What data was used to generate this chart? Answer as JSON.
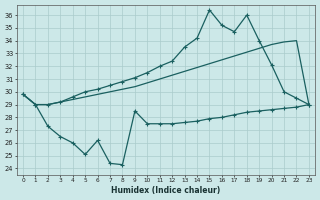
{
  "xlabel": "Humidex (Indice chaleur)",
  "background_color": "#cce8e8",
  "grid_color": "#aacccc",
  "line_color": "#1a6060",
  "xlim": [
    -0.5,
    23.5
  ],
  "ylim": [
    23.5,
    36.8
  ],
  "yticks": [
    24,
    25,
    26,
    27,
    28,
    29,
    30,
    31,
    32,
    33,
    34,
    35,
    36
  ],
  "xticks": [
    0,
    1,
    2,
    3,
    4,
    5,
    6,
    7,
    8,
    9,
    10,
    11,
    12,
    13,
    14,
    15,
    16,
    17,
    18,
    19,
    20,
    21,
    22,
    23
  ],
  "line1_x": [
    0,
    1,
    2,
    3,
    4,
    5,
    6,
    7,
    8,
    9,
    10,
    11,
    12,
    13,
    14,
    15,
    16,
    17,
    18,
    19,
    20,
    21,
    22,
    23
  ],
  "line1_y": [
    29.8,
    29.0,
    29.0,
    29.2,
    29.4,
    29.6,
    29.8,
    30.0,
    30.2,
    30.4,
    30.7,
    31.0,
    31.3,
    31.6,
    31.9,
    32.2,
    32.5,
    32.8,
    33.1,
    33.4,
    33.7,
    33.9,
    34.0,
    29.0
  ],
  "line2_x": [
    0,
    1,
    2,
    3,
    4,
    5,
    6,
    7,
    8,
    9,
    10,
    11,
    12,
    13,
    14,
    15,
    16,
    17,
    18,
    19,
    20,
    21,
    22,
    23
  ],
  "line2_y": [
    29.8,
    29.0,
    29.0,
    29.2,
    29.6,
    30.0,
    30.2,
    30.5,
    30.8,
    31.1,
    31.5,
    32.0,
    32.4,
    33.5,
    34.2,
    36.4,
    35.2,
    34.7,
    36.0,
    34.0,
    32.1,
    30.0,
    29.5,
    29.0
  ],
  "line3_x": [
    0,
    1,
    2,
    3,
    4,
    5,
    6,
    7,
    8,
    9,
    10,
    11,
    12,
    13,
    14,
    15,
    16,
    17,
    18,
    19,
    20,
    21,
    22,
    23
  ],
  "line3_y": [
    29.8,
    29.0,
    27.3,
    26.5,
    26.0,
    25.1,
    26.2,
    24.4,
    24.3,
    28.5,
    27.5,
    27.5,
    27.5,
    27.6,
    27.7,
    27.9,
    28.0,
    28.2,
    28.4,
    28.5,
    28.6,
    28.7,
    28.8,
    29.0
  ]
}
